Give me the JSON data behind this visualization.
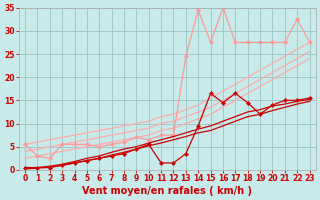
{
  "title": "",
  "xlabel": "Vent moyen/en rafales ( km/h )",
  "ylabel": "",
  "background_color": "#c8eaea",
  "grid_color": "#a0c8c8",
  "x": [
    0,
    1,
    2,
    3,
    4,
    5,
    6,
    7,
    8,
    9,
    10,
    11,
    12,
    13,
    14,
    15,
    16,
    17,
    18,
    19,
    20,
    21,
    22,
    23
  ],
  "xlim": [
    -0.5,
    23.5
  ],
  "ylim": [
    0,
    35
  ],
  "yticks": [
    0,
    5,
    10,
    15,
    20,
    25,
    30,
    35
  ],
  "xticks": [
    0,
    1,
    2,
    3,
    4,
    5,
    6,
    7,
    8,
    9,
    10,
    11,
    12,
    13,
    14,
    15,
    16,
    17,
    18,
    19,
    20,
    21,
    22,
    23
  ],
  "lines": [
    {
      "color": "#ffaaaa",
      "linewidth": 0.9,
      "marker": null,
      "markersize": 0,
      "values": [
        5.5,
        6.0,
        6.5,
        7.0,
        7.5,
        8.0,
        8.5,
        9.0,
        9.5,
        10.0,
        10.5,
        11.5,
        12.0,
        13.0,
        14.0,
        15.5,
        17.0,
        18.5,
        20.0,
        21.5,
        23.0,
        24.5,
        26.0,
        27.5
      ]
    },
    {
      "color": "#ffaaaa",
      "linewidth": 0.9,
      "marker": null,
      "markersize": 0,
      "values": [
        4.0,
        4.5,
        5.0,
        5.5,
        6.0,
        6.5,
        7.0,
        7.5,
        8.0,
        8.5,
        9.0,
        10.0,
        10.5,
        11.5,
        12.5,
        13.5,
        15.0,
        16.5,
        18.0,
        19.5,
        21.0,
        22.5,
        24.0,
        25.5
      ]
    },
    {
      "color": "#ffaaaa",
      "linewidth": 0.9,
      "marker": null,
      "markersize": 0,
      "values": [
        2.5,
        3.0,
        3.5,
        4.0,
        4.5,
        5.0,
        5.5,
        6.0,
        6.5,
        7.0,
        7.5,
        8.5,
        9.0,
        10.0,
        11.0,
        12.0,
        13.5,
        15.0,
        16.5,
        18.0,
        19.5,
        21.0,
        22.5,
        24.0
      ]
    },
    {
      "color": "#ff9999",
      "linewidth": 0.9,
      "marker": "D",
      "markersize": 2.2,
      "values": [
        5.5,
        3.0,
        2.5,
        5.5,
        5.5,
        5.5,
        5.0,
        5.5,
        6.0,
        7.0,
        6.5,
        7.5,
        7.5,
        24.5,
        34.5,
        27.5,
        35.0,
        27.5,
        27.5,
        27.5,
        27.5,
        27.5,
        32.5,
        27.5
      ]
    },
    {
      "color": "#cc0000",
      "linewidth": 0.9,
      "marker": null,
      "markersize": 0,
      "values": [
        0.3,
        0.5,
        0.8,
        1.2,
        1.8,
        2.5,
        3.0,
        3.8,
        4.5,
        5.0,
        5.8,
        6.5,
        7.2,
        8.0,
        8.8,
        9.5,
        10.5,
        11.5,
        12.5,
        13.0,
        13.8,
        14.2,
        14.8,
        15.2
      ]
    },
    {
      "color": "#cc0000",
      "linewidth": 0.9,
      "marker": null,
      "markersize": 0,
      "values": [
        0.2,
        0.4,
        0.6,
        1.0,
        1.5,
        2.0,
        2.5,
        3.2,
        3.8,
        4.5,
        5.2,
        5.8,
        6.5,
        7.2,
        8.0,
        8.5,
        9.5,
        10.5,
        11.5,
        12.0,
        12.8,
        13.5,
        14.2,
        14.8
      ]
    },
    {
      "color": "#cc0000",
      "linewidth": 0.9,
      "marker": "D",
      "markersize": 2.2,
      "values": [
        0.5,
        0.5,
        0.5,
        1.0,
        1.5,
        2.0,
        2.5,
        3.0,
        3.5,
        4.5,
        5.5,
        1.5,
        1.5,
        3.5,
        9.5,
        16.5,
        14.5,
        16.5,
        14.5,
        12.0,
        14.0,
        15.0,
        15.0,
        15.5
      ]
    }
  ],
  "tick_color": "#cc0000",
  "tick_fontsize": 5.5,
  "label_fontsize": 7,
  "label_color": "#cc0000"
}
